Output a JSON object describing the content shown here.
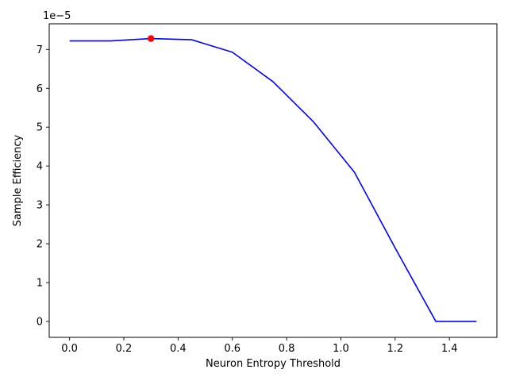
{
  "chart_data": {
    "type": "line",
    "title": "",
    "xlabel": "Neuron Entropy Threshold",
    "ylabel": "Sample Efficiency",
    "y_offset_label": "1e−5",
    "xlim": [
      -0.075,
      1.575
    ],
    "ylim": [
      -0.41,
      7.66
    ],
    "y_scale_factor": 1e-05,
    "x_ticks": [
      0.0,
      0.2,
      0.4,
      0.6,
      0.8,
      1.0,
      1.2,
      1.4
    ],
    "x_tick_labels": [
      "0.0",
      "0.2",
      "0.4",
      "0.6",
      "0.8",
      "1.0",
      "1.2",
      "1.4"
    ],
    "y_ticks": [
      0,
      1,
      2,
      3,
      4,
      5,
      6,
      7
    ],
    "y_tick_labels": [
      "0",
      "1",
      "2",
      "3",
      "4",
      "5",
      "6",
      "7"
    ],
    "series": [
      {
        "color": "#0000ff",
        "x": [
          0.0,
          0.15,
          0.3,
          0.45,
          0.6,
          0.75,
          0.9,
          1.05,
          1.2,
          1.35,
          1.5
        ],
        "y": [
          7.22,
          7.22,
          7.28,
          7.25,
          6.93,
          6.17,
          5.13,
          3.84,
          1.89,
          0.0,
          0.0
        ]
      }
    ],
    "highlight_point": {
      "x": 0.3,
      "y": 7.28,
      "color": "#ff0000"
    },
    "grid": false,
    "legend": "none"
  }
}
